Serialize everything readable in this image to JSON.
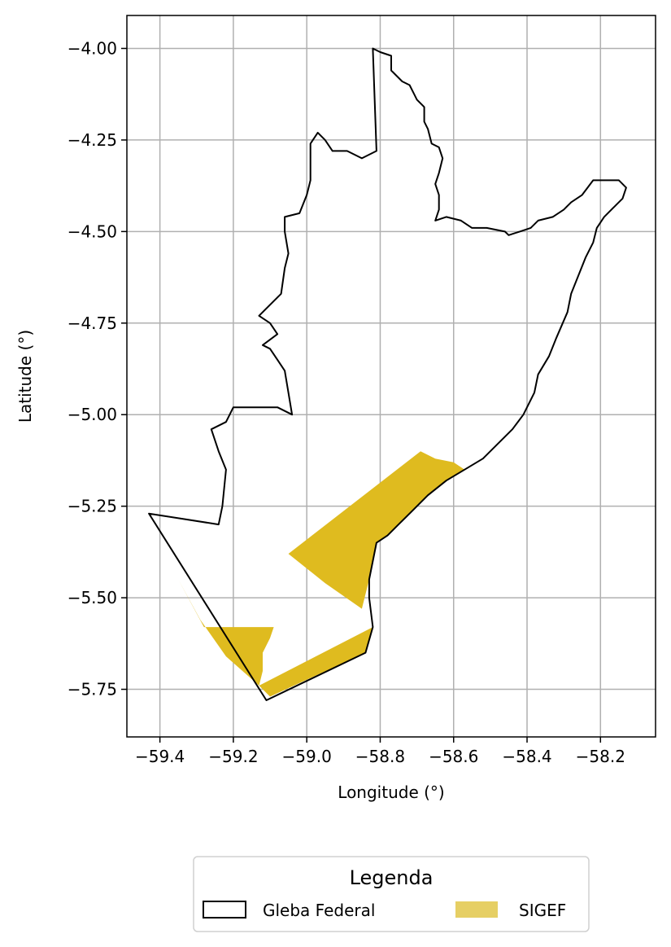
{
  "chart_data": {
    "type": "map",
    "xlabel": "Longitude (°)",
    "ylabel": "Latitude (°)",
    "xlim": [
      -59.49,
      -58.05
    ],
    "ylim": [
      -5.88,
      -3.91
    ],
    "x_ticks": [
      -59.4,
      -59.2,
      -59.0,
      -58.8,
      -58.6,
      -58.4,
      -58.2
    ],
    "x_tick_labels": [
      "−59.4",
      "−59.2",
      "−59.0",
      "−58.8",
      "−58.6",
      "−58.4",
      "−58.2"
    ],
    "y_ticks": [
      -4.0,
      -4.25,
      -4.5,
      -4.75,
      -5.0,
      -5.25,
      -5.5,
      -5.75
    ],
    "y_tick_labels": [
      "−4.00",
      "−4.25",
      "−4.50",
      "−4.75",
      "−5.00",
      "−5.25",
      "−5.50",
      "−5.75"
    ],
    "grid": true,
    "legend": {
      "title": "Legenda",
      "placement": "bottom-center",
      "entries": [
        {
          "label": "Gleba Federal",
          "style": "outline",
          "color": "#000000"
        },
        {
          "label": "SIGEF",
          "style": "fill",
          "color": "#e6cf64"
        }
      ]
    },
    "layers": [
      {
        "name": "Gleba Federal",
        "kind": "polygon-outline",
        "color": "#000000",
        "coords": [
          [
            -58.82,
            -4.0
          ],
          [
            -58.8,
            -4.01
          ],
          [
            -58.77,
            -4.02
          ],
          [
            -58.77,
            -4.06
          ],
          [
            -58.74,
            -4.09
          ],
          [
            -58.72,
            -4.1
          ],
          [
            -58.71,
            -4.12
          ],
          [
            -58.7,
            -4.14
          ],
          [
            -58.68,
            -4.16
          ],
          [
            -58.68,
            -4.2
          ],
          [
            -58.67,
            -4.22
          ],
          [
            -58.66,
            -4.26
          ],
          [
            -58.64,
            -4.27
          ],
          [
            -58.63,
            -4.3
          ],
          [
            -58.64,
            -4.34
          ],
          [
            -58.65,
            -4.37
          ],
          [
            -58.64,
            -4.4
          ],
          [
            -58.64,
            -4.44
          ],
          [
            -58.65,
            -4.47
          ],
          [
            -58.62,
            -4.46
          ],
          [
            -58.58,
            -4.47
          ],
          [
            -58.55,
            -4.49
          ],
          [
            -58.51,
            -4.49
          ],
          [
            -58.46,
            -4.5
          ],
          [
            -58.45,
            -4.51
          ],
          [
            -58.42,
            -4.5
          ],
          [
            -58.39,
            -4.49
          ],
          [
            -58.37,
            -4.47
          ],
          [
            -58.33,
            -4.46
          ],
          [
            -58.3,
            -4.44
          ],
          [
            -58.28,
            -4.42
          ],
          [
            -58.25,
            -4.4
          ],
          [
            -58.22,
            -4.36
          ],
          [
            -58.19,
            -4.36
          ],
          [
            -58.15,
            -4.36
          ],
          [
            -58.13,
            -4.38
          ],
          [
            -58.14,
            -4.41
          ],
          [
            -58.16,
            -4.43
          ],
          [
            -58.19,
            -4.46
          ],
          [
            -58.21,
            -4.49
          ],
          [
            -58.22,
            -4.53
          ],
          [
            -58.24,
            -4.57
          ],
          [
            -58.26,
            -4.62
          ],
          [
            -58.28,
            -4.67
          ],
          [
            -58.29,
            -4.72
          ],
          [
            -58.32,
            -4.79
          ],
          [
            -58.34,
            -4.84
          ],
          [
            -58.37,
            -4.89
          ],
          [
            -58.38,
            -4.94
          ],
          [
            -58.41,
            -5.0
          ],
          [
            -58.44,
            -5.04
          ],
          [
            -58.48,
            -5.08
          ],
          [
            -58.52,
            -5.12
          ],
          [
            -58.57,
            -5.15
          ],
          [
            -58.62,
            -5.18
          ],
          [
            -58.67,
            -5.22
          ],
          [
            -58.71,
            -5.26
          ],
          [
            -58.75,
            -5.3
          ],
          [
            -58.78,
            -5.33
          ],
          [
            -58.81,
            -5.35
          ],
          [
            -58.82,
            -5.4
          ],
          [
            -58.83,
            -5.45
          ],
          [
            -58.83,
            -5.5
          ],
          [
            -58.82,
            -5.58
          ],
          [
            -58.84,
            -5.65
          ],
          [
            -59.11,
            -5.78
          ],
          [
            -59.43,
            -5.27
          ],
          [
            -59.24,
            -5.3
          ],
          [
            -59.23,
            -5.25
          ],
          [
            -59.22,
            -5.15
          ],
          [
            -59.24,
            -5.1
          ],
          [
            -59.26,
            -5.04
          ],
          [
            -59.22,
            -5.02
          ],
          [
            -59.2,
            -4.98
          ],
          [
            -59.14,
            -4.98
          ],
          [
            -59.08,
            -4.98
          ],
          [
            -59.04,
            -5.0
          ],
          [
            -59.05,
            -4.94
          ],
          [
            -59.06,
            -4.88
          ],
          [
            -59.08,
            -4.85
          ],
          [
            -59.1,
            -4.82
          ],
          [
            -59.12,
            -4.81
          ],
          [
            -59.08,
            -4.78
          ],
          [
            -59.1,
            -4.75
          ],
          [
            -59.13,
            -4.73
          ],
          [
            -59.07,
            -4.67
          ],
          [
            -59.06,
            -4.6
          ],
          [
            -59.05,
            -4.56
          ],
          [
            -59.06,
            -4.5
          ],
          [
            -59.06,
            -4.46
          ],
          [
            -59.02,
            -4.45
          ],
          [
            -59.0,
            -4.4
          ],
          [
            -58.99,
            -4.36
          ],
          [
            -58.99,
            -4.3
          ],
          [
            -58.99,
            -4.26
          ],
          [
            -58.97,
            -4.23
          ],
          [
            -58.95,
            -4.25
          ],
          [
            -58.93,
            -4.28
          ],
          [
            -58.89,
            -4.28
          ],
          [
            -58.85,
            -4.3
          ],
          [
            -58.81,
            -4.28
          ],
          [
            -58.82,
            -4.0
          ]
        ]
      },
      {
        "name": "SIGEF",
        "kind": "polygon-fill",
        "color": "#dfbb1f",
        "parts": [
          [
            [
              -59.05,
              -5.38
            ],
            [
              -58.69,
              -5.1
            ],
            [
              -58.65,
              -5.12
            ],
            [
              -58.6,
              -5.13
            ],
            [
              -58.57,
              -5.15
            ],
            [
              -58.62,
              -5.18
            ],
            [
              -58.67,
              -5.22
            ],
            [
              -58.71,
              -5.26
            ],
            [
              -58.75,
              -5.3
            ],
            [
              -58.78,
              -5.33
            ],
            [
              -58.81,
              -5.35
            ],
            [
              -58.82,
              -5.4
            ],
            [
              -58.83,
              -5.45
            ],
            [
              -58.85,
              -5.53
            ],
            [
              -58.95,
              -5.46
            ]
          ],
          [
            [
              -59.35,
              -5.45
            ],
            [
              -59.28,
              -5.58
            ],
            [
              -59.09,
              -5.58
            ],
            [
              -59.1,
              -5.61
            ],
            [
              -59.12,
              -5.65
            ],
            [
              -59.12,
              -5.7
            ],
            [
              -59.13,
              -5.74
            ],
            [
              -59.22,
              -5.66
            ],
            [
              -59.29,
              -5.56
            ]
          ],
          [
            [
              -59.13,
              -5.74
            ],
            [
              -58.82,
              -5.58
            ],
            [
              -58.84,
              -5.65
            ],
            [
              -59.1,
              -5.77
            ]
          ]
        ]
      }
    ]
  }
}
